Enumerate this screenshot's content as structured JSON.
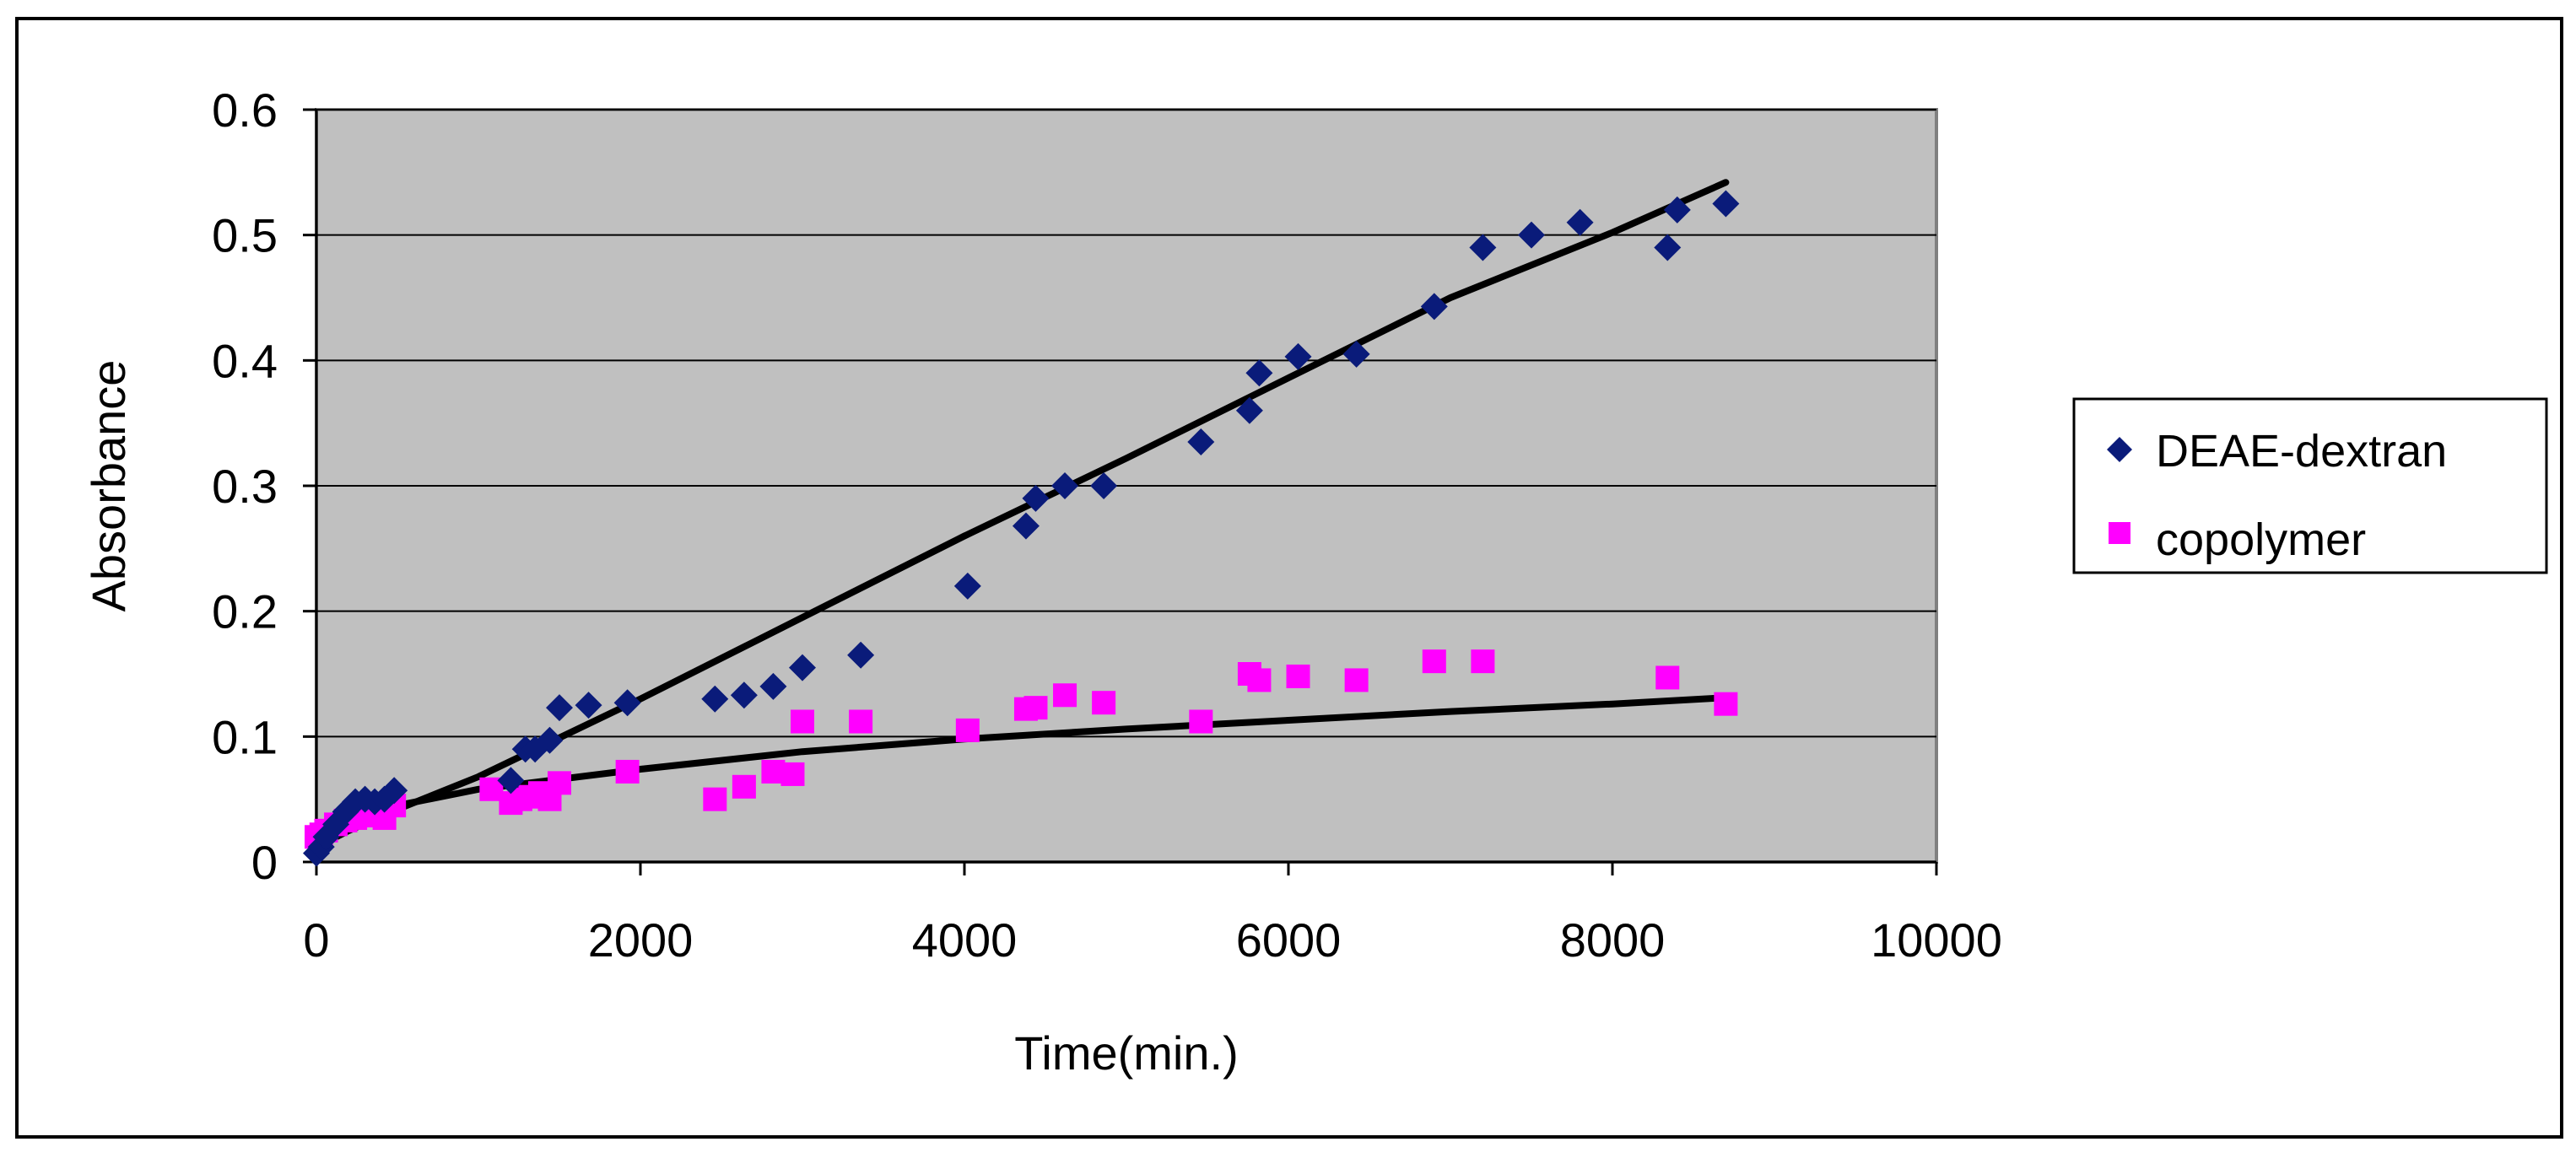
{
  "chart_data": {
    "type": "scatter",
    "title": "",
    "xlabel": "Time(min.)",
    "ylabel": "Absorbance",
    "xlim": [
      0,
      10000
    ],
    "ylim": [
      0,
      0.6
    ],
    "xticks": [
      0,
      2000,
      4000,
      6000,
      8000,
      10000
    ],
    "yticks": [
      0,
      0.1,
      0.2,
      0.3,
      0.4,
      0.5,
      0.6
    ],
    "xtick_labels": [
      "0",
      "2000",
      "4000",
      "6000",
      "8000",
      "10000"
    ],
    "ytick_labels": [
      "0",
      "0.1",
      "0.2",
      "0.3",
      "0.4",
      "0.5",
      "0.6"
    ],
    "grid": "horizontal",
    "legend_position": "right",
    "colors": {
      "plot_background": "#c0c0c0",
      "frame": "#808080",
      "gridline": "#000000",
      "deae": "#0a1b7a",
      "copolymer": "#ff00ff",
      "trendline": "#000000"
    },
    "series": [
      {
        "name": "DEAE-dextran",
        "marker": "diamond",
        "color": "#0a1b7a",
        "x": [
          0,
          30,
          60,
          120,
          180,
          240,
          300,
          360,
          420,
          480,
          1200,
          1290,
          1350,
          1440,
          1500,
          1680,
          1920,
          2460,
          2640,
          2820,
          3000,
          3360,
          4020,
          4380,
          4440,
          4620,
          4860,
          5460,
          5760,
          5820,
          6060,
          6420,
          6900,
          7200,
          7500,
          7800,
          8340,
          8400,
          8700
        ],
        "y": [
          0.007,
          0.012,
          0.02,
          0.03,
          0.04,
          0.048,
          0.05,
          0.048,
          0.05,
          0.057,
          0.065,
          0.09,
          0.09,
          0.097,
          0.123,
          0.125,
          0.127,
          0.13,
          0.133,
          0.14,
          0.155,
          0.165,
          0.22,
          0.268,
          0.29,
          0.3,
          0.3,
          0.335,
          0.36,
          0.39,
          0.403,
          0.405,
          0.443,
          0.49,
          0.5,
          0.51,
          0.49,
          0.52,
          0.525
        ]
      },
      {
        "name": "copolymer",
        "marker": "square",
        "color": "#ff00ff",
        "x": [
          0,
          30,
          60,
          120,
          180,
          240,
          300,
          360,
          420,
          480,
          1080,
          1200,
          1260,
          1320,
          1380,
          1440,
          1500,
          1920,
          2460,
          2640,
          2820,
          2940,
          3000,
          3360,
          4020,
          4380,
          4440,
          4620,
          4860,
          5460,
          5760,
          5820,
          6060,
          6420,
          6900,
          7200,
          8340,
          8700
        ],
        "y": [
          0.02,
          0.022,
          0.025,
          0.03,
          0.033,
          0.035,
          0.037,
          0.04,
          0.035,
          0.045,
          0.058,
          0.047,
          0.05,
          0.052,
          0.055,
          0.05,
          0.063,
          0.072,
          0.05,
          0.06,
          0.072,
          0.07,
          0.112,
          0.112,
          0.105,
          0.122,
          0.123,
          0.133,
          0.127,
          0.112,
          0.15,
          0.145,
          0.148,
          0.145,
          0.16,
          0.16,
          0.147,
          0.126
        ]
      }
    ],
    "trendlines": [
      {
        "series": "DEAE-dextran",
        "x": [
          0,
          200,
          500,
          1000,
          2000,
          3000,
          4000,
          5000,
          6000,
          7000,
          8000,
          8700
        ],
        "y": [
          0.012,
          0.025,
          0.042,
          0.068,
          0.13,
          0.195,
          0.26,
          0.322,
          0.386,
          0.45,
          0.502,
          0.542
        ]
      },
      {
        "series": "copolymer",
        "x": [
          0,
          50,
          100,
          200,
          500,
          1000,
          2000,
          3000,
          4000,
          5000,
          6000,
          7000,
          8000,
          8700
        ],
        "y": [
          0.018,
          0.023,
          0.027,
          0.033,
          0.045,
          0.058,
          0.074,
          0.088,
          0.098,
          0.106,
          0.113,
          0.12,
          0.126,
          0.131
        ]
      }
    ]
  }
}
